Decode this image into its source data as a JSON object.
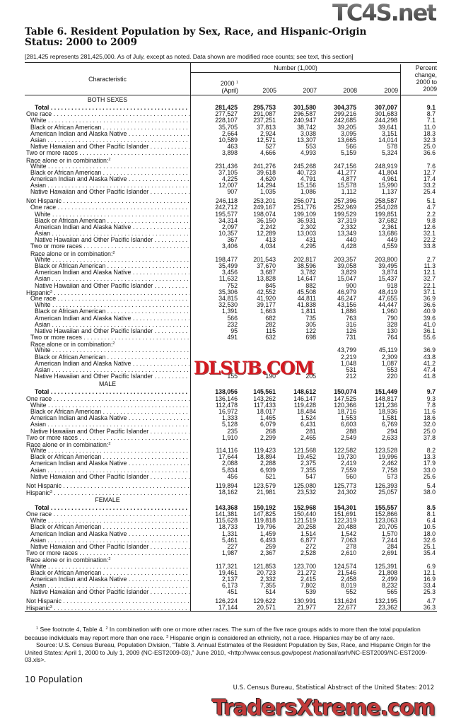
{
  "title": "Table 6. Resident Population by Sex, Race, and Hispanic-Origin Status: 2000 to 2009",
  "headnote": "[281,425 represents 281,425,000. As of July, except as noted. Data shown are modified race counts; see text, this section]",
  "header": {
    "characteristic": "Characteristic",
    "number": "Number (1,000)",
    "years": [
      "2000",
      "2005",
      "2007",
      "2008",
      "2009"
    ],
    "year2000_sup": "1",
    "year2000_note": "(April)",
    "percent": "Percent change, 2000 to 2009"
  },
  "table": {
    "rows": [
      {
        "sec": "BOTH SEXES"
      },
      {
        "l": "Total",
        "lv": 2,
        "b": true,
        "v": [
          "281,425",
          "295,753",
          "301,580",
          "304,375",
          "307,007",
          "9.1"
        ]
      },
      {
        "l": "One race",
        "lv": 0,
        "v": [
          "277,527",
          "291,087",
          "296,587",
          "299,216",
          "301,683",
          "8.7"
        ]
      },
      {
        "l": "White",
        "lv": 1,
        "v": [
          "228,107",
          "237,251",
          "240,947",
          "242,685",
          "244,298",
          "7.1"
        ]
      },
      {
        "l": "Black or African American",
        "lv": 1,
        "v": [
          "35,705",
          "37,813",
          "38,742",
          "39,205",
          "39,641",
          "11.0"
        ]
      },
      {
        "l": "American Indian and Alaska Native",
        "lv": 1,
        "v": [
          "2,664",
          "2,924",
          "3,038",
          "3,095",
          "3,151",
          "18.3"
        ]
      },
      {
        "l": "Asian",
        "lv": 1,
        "v": [
          "10,589",
          "12,571",
          "13,307",
          "13,665",
          "14,014",
          "32.3"
        ]
      },
      {
        "l": "Native Hawaiian and Other Pacific Islander",
        "lv": 1,
        "v": [
          "463",
          "527",
          "553",
          "566",
          "578",
          "25.0"
        ]
      },
      {
        "l": "Two or more races",
        "lv": 0,
        "v": [
          "3,898",
          "4,666",
          "4,993",
          "5,159",
          "5,324",
          "36.6"
        ]
      },
      {
        "l": "Race alone or in combination:",
        "sup": "2",
        "lv": 0,
        "nd": true
      },
      {
        "l": "White",
        "lv": 1,
        "v": [
          "231,436",
          "241,276",
          "245,268",
          "247,156",
          "248,919",
          "7.6"
        ]
      },
      {
        "l": "Black or African American",
        "lv": 1,
        "v": [
          "37,105",
          "39,618",
          "40,723",
          "41,277",
          "41,804",
          "12.7"
        ]
      },
      {
        "l": "American Indian and Alaska Native",
        "lv": 1,
        "v": [
          "4,225",
          "4,620",
          "4,791",
          "4,877",
          "4,961",
          "17.4"
        ]
      },
      {
        "l": "Asian",
        "lv": 1,
        "v": [
          "12,007",
          "14,294",
          "15,156",
          "15,578",
          "15,990",
          "33.2"
        ]
      },
      {
        "l": "Native Hawaiian and Other Pacific Islander",
        "lv": 1,
        "v": [
          "907",
          "1,035",
          "1,086",
          "1,112",
          "1,137",
          "25.4"
        ]
      },
      {
        "l": "Not Hispanic",
        "lv": 0,
        "gap": true,
        "v": [
          "246,118",
          "253,201",
          "256,071",
          "257,396",
          "258,587",
          "5.1"
        ]
      },
      {
        "l": "One race",
        "lv": 1,
        "v": [
          "242,712",
          "249,167",
          "251,776",
          "252,969",
          "254,028",
          "4.7"
        ]
      },
      {
        "l": "White",
        "lv": 2,
        "v": [
          "195,577",
          "198,074",
          "199,109",
          "199,529",
          "199,851",
          "2.2"
        ]
      },
      {
        "l": "Black or African American",
        "lv": 2,
        "v": [
          "34,314",
          "36,150",
          "36,931",
          "37,319",
          "37,682",
          "9.8"
        ]
      },
      {
        "l": "American Indian and Alaska Native",
        "lv": 2,
        "v": [
          "2,097",
          "2,242",
          "2,302",
          "2,332",
          "2,361",
          "12.6"
        ]
      },
      {
        "l": "Asian",
        "lv": 2,
        "v": [
          "10,357",
          "12,289",
          "13,003",
          "13,349",
          "13,686",
          "32.1"
        ]
      },
      {
        "l": "Native Hawaiian and Other Pacific Islander",
        "lv": 2,
        "v": [
          "367",
          "413",
          "431",
          "440",
          "449",
          "22.2"
        ]
      },
      {
        "l": "Two or more races",
        "lv": 1,
        "v": [
          "3,406",
          "4,034",
          "4,295",
          "4,428",
          "4,559",
          "33.8"
        ]
      },
      {
        "l": "Race alone or in combination:",
        "sup": "2",
        "lv": 1,
        "nd": true
      },
      {
        "l": "White",
        "lv": 2,
        "v": [
          "198,477",
          "201,543",
          "202,817",
          "203,357",
          "203,800",
          "2.7"
        ]
      },
      {
        "l": "Black or African American",
        "lv": 2,
        "v": [
          "35,499",
          "37,670",
          "38,596",
          "39,058",
          "39,495",
          "11.3"
        ]
      },
      {
        "l": "American Indian and Alaska Native",
        "lv": 2,
        "v": [
          "3,456",
          "3,687",
          "3,782",
          "3,829",
          "3,874",
          "12.1"
        ]
      },
      {
        "l": "Asian",
        "lv": 2,
        "v": [
          "11,632",
          "13,828",
          "14,647",
          "15,047",
          "15,437",
          "32.7"
        ]
      },
      {
        "l": "Native Hawaiian and Other Pacific Islander",
        "lv": 2,
        "v": [
          "752",
          "845",
          "882",
          "900",
          "918",
          "22.1"
        ]
      },
      {
        "l": "Hispanic",
        "sup": "3",
        "lv": 0,
        "v": [
          "35,306",
          "42,552",
          "45,508",
          "46,979",
          "48,419",
          "37.1"
        ]
      },
      {
        "l": "One race",
        "lv": 1,
        "v": [
          "34,815",
          "41,920",
          "44,811",
          "46,247",
          "47,655",
          "36.9"
        ]
      },
      {
        "l": "White",
        "lv": 2,
        "v": [
          "32,530",
          "39,177",
          "41,838",
          "43,156",
          "44,447",
          "36.6"
        ]
      },
      {
        "l": "Black or African American",
        "lv": 2,
        "v": [
          "1,391",
          "1,663",
          "1,811",
          "1,886",
          "1,960",
          "40.9"
        ]
      },
      {
        "l": "American Indian and Alaska Native",
        "lv": 2,
        "v": [
          "566",
          "682",
          "735",
          "763",
          "790",
          "39.6"
        ]
      },
      {
        "l": "Asian",
        "lv": 2,
        "v": [
          "232",
          "282",
          "305",
          "316",
          "328",
          "41.0"
        ]
      },
      {
        "l": "Native Hawaiian and Other Pacific Islander",
        "lv": 2,
        "v": [
          "95",
          "115",
          "122",
          "126",
          "130",
          "36.1"
        ]
      },
      {
        "l": "Two or more races",
        "lv": 1,
        "v": [
          "491",
          "632",
          "698",
          "731",
          "764",
          "55.6"
        ]
      },
      {
        "l": "Race alone or in combination:",
        "sup": "2",
        "lv": 1,
        "nd": true
      },
      {
        "l": "White",
        "lv": 2,
        "v": [
          "",
          "",
          "",
          "43,799",
          "45,119",
          "36.9"
        ]
      },
      {
        "l": "Black or African American",
        "lv": 2,
        "v": [
          "",
          "",
          "",
          "2,219",
          "2,309",
          "43.8"
        ]
      },
      {
        "l": "American Indian and Alaska Native",
        "lv": 2,
        "v": [
          "",
          "",
          "",
          "1,048",
          "1,087",
          "41.2"
        ]
      },
      {
        "l": "Asian",
        "lv": 2,
        "v": [
          "",
          "",
          "",
          "531",
          "553",
          "47.4"
        ]
      },
      {
        "l": "Native Hawaiian and Other Pacific Islander",
        "lv": 2,
        "v": [
          "155",
          "190",
          "205",
          "212",
          "220",
          "41.8"
        ]
      },
      {
        "sec": "MALE"
      },
      {
        "l": "Total",
        "lv": 2,
        "b": true,
        "v": [
          "138,056",
          "145,561",
          "148,612",
          "150,074",
          "151,449",
          "9.7"
        ]
      },
      {
        "l": "One race",
        "lv": 0,
        "v": [
          "136,146",
          "143,262",
          "146,147",
          "147,525",
          "148,817",
          "9.3"
        ]
      },
      {
        "l": "White",
        "lv": 1,
        "v": [
          "112,478",
          "117,433",
          "119,428",
          "120,366",
          "121,236",
          "7.8"
        ]
      },
      {
        "l": "Black or African American",
        "lv": 1,
        "v": [
          "16,972",
          "18,017",
          "18,484",
          "18,716",
          "18,936",
          "11.6"
        ]
      },
      {
        "l": "American Indian and Alaska Native",
        "lv": 1,
        "v": [
          "1,333",
          "1,465",
          "1,524",
          "1,553",
          "1,581",
          "18.6"
        ]
      },
      {
        "l": "Asian",
        "lv": 1,
        "v": [
          "5,128",
          "6,079",
          "6,431",
          "6,603",
          "6,769",
          "32.0"
        ]
      },
      {
        "l": "Native Hawaiian and Other Pacific Islander",
        "lv": 1,
        "v": [
          "235",
          "268",
          "281",
          "288",
          "294",
          "25.0"
        ]
      },
      {
        "l": "Two or more races",
        "lv": 0,
        "v": [
          "1,910",
          "2,299",
          "2,465",
          "2,549",
          "2,633",
          "37.8"
        ]
      },
      {
        "l": "Race alone or in combination:",
        "sup": "2",
        "lv": 0,
        "nd": true
      },
      {
        "l": "White",
        "lv": 1,
        "v": [
          "114,116",
          "119,423",
          "121,568",
          "122,582",
          "123,528",
          "8.2"
        ]
      },
      {
        "l": "Black or African American",
        "lv": 1,
        "v": [
          "17,644",
          "18,894",
          "19,452",
          "19,730",
          "19,996",
          "13.3"
        ]
      },
      {
        "l": "American Indian and Alaska Native",
        "lv": 1,
        "v": [
          "2,088",
          "2,288",
          "2,375",
          "2,419",
          "2,462",
          "17.9"
        ]
      },
      {
        "l": "Asian",
        "lv": 1,
        "v": [
          "5,834",
          "6,939",
          "7,355",
          "7,559",
          "7,758",
          "33.0"
        ]
      },
      {
        "l": "Native Hawaiian and Other Pacific Islander",
        "lv": 1,
        "v": [
          "456",
          "521",
          "547",
          "560",
          "573",
          "25.6"
        ]
      },
      {
        "l": "Not Hispanic",
        "lv": 0,
        "gap": true,
        "v": [
          "119,894",
          "123,579",
          "125,080",
          "125,773",
          "126,393",
          "5.4"
        ]
      },
      {
        "l": "Hispanic",
        "sup": "3",
        "lv": 0,
        "v": [
          "18,162",
          "21,981",
          "23,532",
          "24,302",
          "25,057",
          "38.0"
        ]
      },
      {
        "sec": "FEMALE"
      },
      {
        "l": "Total",
        "lv": 2,
        "b": true,
        "v": [
          "143,368",
          "150,192",
          "152,968",
          "154,301",
          "155,557",
          "8.5"
        ]
      },
      {
        "l": "One race",
        "lv": 0,
        "v": [
          "141,381",
          "147,825",
          "150,440",
          "151,691",
          "152,866",
          "8.1"
        ]
      },
      {
        "l": "White",
        "lv": 1,
        "v": [
          "115,628",
          "119,818",
          "121,519",
          "122,319",
          "123,063",
          "6.4"
        ]
      },
      {
        "l": "Black or African American",
        "lv": 1,
        "v": [
          "18,733",
          "19,796",
          "20,258",
          "20,488",
          "20,705",
          "10.5"
        ]
      },
      {
        "l": "American Indian and Alaska Native",
        "lv": 1,
        "v": [
          "1,331",
          "1,459",
          "1,514",
          "1,542",
          "1,570",
          "18.0"
        ]
      },
      {
        "l": "Asian",
        "lv": 1,
        "v": [
          "5,461",
          "6,493",
          "6,877",
          "7,063",
          "7,244",
          "32.6"
        ]
      },
      {
        "l": "Native Hawaiian and Other Pacific Islander",
        "lv": 1,
        "v": [
          "227",
          "259",
          "272",
          "278",
          "284",
          "25.1"
        ]
      },
      {
        "l": "Two or more races",
        "lv": 0,
        "v": [
          "1,987",
          "2,367",
          "2,528",
          "2,610",
          "2,691",
          "35.4"
        ]
      },
      {
        "l": "Race alone or in combination:",
        "sup": "2",
        "lv": 0,
        "nd": true
      },
      {
        "l": "White",
        "lv": 1,
        "v": [
          "117,321",
          "121,853",
          "123,700",
          "124,574",
          "125,391",
          "6.9"
        ]
      },
      {
        "l": "Black or African American",
        "lv": 1,
        "v": [
          "19,461",
          "20,723",
          "21,272",
          "21,546",
          "21,808",
          "12.1"
        ]
      },
      {
        "l": "American Indian and Alaska Native",
        "lv": 1,
        "v": [
          "2,137",
          "2,332",
          "2,415",
          "2,458",
          "2,499",
          "16.9"
        ]
      },
      {
        "l": "Asian",
        "lv": 1,
        "v": [
          "6,173",
          "7,355",
          "7,802",
          "8,019",
          "8,232",
          "33.4"
        ]
      },
      {
        "l": "Native Hawaiian and Other Pacific Islander",
        "lv": 1,
        "v": [
          "451",
          "514",
          "539",
          "552",
          "565",
          "25.3"
        ]
      },
      {
        "l": "Not Hispanic",
        "lv": 0,
        "gap": true,
        "v": [
          "126,224",
          "129,622",
          "130,991",
          "131,624",
          "132,195",
          "4.7"
        ]
      },
      {
        "l": "Hispanic",
        "sup": "3",
        "lv": 0,
        "v": [
          "17,144",
          "20,571",
          "21,977",
          "22,677",
          "23,362",
          "36.3"
        ]
      }
    ]
  },
  "footnotes": {
    "notes": [
      {
        "sup": "1",
        "text": " See footnote 4, Table 4. "
      },
      {
        "sup": "2",
        "text": " In combination with one or more other races. The sum of the five race groups adds to more than the total population because individuals may report more than one race. "
      },
      {
        "sup": "3",
        "text": " Hispanic origin is considered an ethnicity, not a race. Hispanics may be of any race."
      }
    ],
    "source": "Source: U.S. Census Bureau, Population Division, “Table 3. Annual Estimates of the Resident Population by Sex, Race, and Hispanic Origin for the United States: April 1, 2000 to July 1, 2009 (NC-EST2009-03),” June 2010, <http://www.census.gov/popest /national/asrh/NC-EST2009/NC-EST2009-03.xls>."
  },
  "page_footer": {
    "page": "10  Population",
    "running": "U.S. Census Bureau, Statistical Abstract of the United States: 2012"
  },
  "watermarks": [
    "TC4S.net",
    "DLSUB.COM",
    "TradersXtreme.com"
  ]
}
